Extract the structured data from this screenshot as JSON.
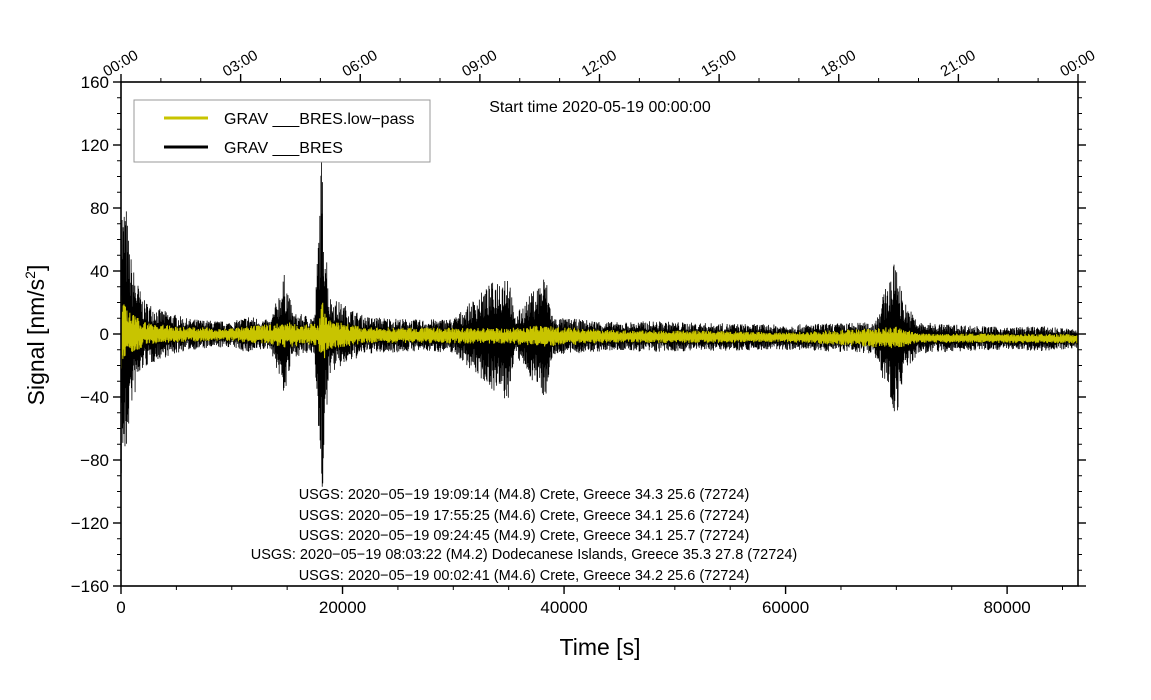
{
  "chart_data": {
    "type": "line",
    "title": "",
    "start_time_label": "Start time 2020-05-19 00:00:00",
    "xlabel": "Time [s]",
    "ylabel_main": "Signal [nm/s",
    "ylabel_sup": "2",
    "ylabel_close": "]",
    "xlim": [
      0,
      86400
    ],
    "ylim": [
      -160,
      160
    ],
    "x_ticks": [
      0,
      20000,
      40000,
      60000,
      80000
    ],
    "x_tick_labels": [
      "0",
      "20000",
      "40000",
      "60000",
      "80000"
    ],
    "y_ticks": [
      -160,
      -120,
      -80,
      -40,
      0,
      40,
      80,
      120,
      160
    ],
    "y_tick_labels": [
      "−160",
      "−120",
      "−80",
      "−40",
      "0",
      "40",
      "80",
      "120",
      "160"
    ],
    "top_ticks": [
      0,
      10800,
      21600,
      32400,
      43200,
      54000,
      64800,
      75600,
      86400
    ],
    "top_tick_labels": [
      "00:00",
      "03:00",
      "06:00",
      "09:00",
      "12:00",
      "15:00",
      "18:00",
      "21:00",
      "00:00"
    ],
    "grid": false,
    "legend_position": "top-left",
    "series": [
      {
        "name": "GRAV ___BRES.low−pass",
        "color": "#c8c400",
        "envelope": [
          [
            0,
            25
          ],
          [
            300,
            20
          ],
          [
            800,
            14
          ],
          [
            2000,
            8
          ],
          [
            5000,
            5
          ],
          [
            10000,
            4
          ],
          [
            14800,
            8
          ],
          [
            17800,
            7
          ],
          [
            18200,
            22
          ],
          [
            18600,
            10
          ],
          [
            22000,
            5
          ],
          [
            30000,
            5
          ],
          [
            35000,
            5
          ],
          [
            38000,
            7
          ],
          [
            44000,
            4
          ],
          [
            52000,
            4
          ],
          [
            60000,
            3
          ],
          [
            70000,
            7
          ],
          [
            72000,
            3
          ],
          [
            80000,
            3
          ],
          [
            86400,
            3
          ]
        ]
      },
      {
        "name": "GRAV ___BRES",
        "color": "#000000",
        "envelope": [
          [
            0,
            95
          ],
          [
            200,
            80
          ],
          [
            400,
            90
          ],
          [
            700,
            60
          ],
          [
            1000,
            45
          ],
          [
            2000,
            22
          ],
          [
            3500,
            16
          ],
          [
            6000,
            10
          ],
          [
            10000,
            8
          ],
          [
            11500,
            12
          ],
          [
            13500,
            9
          ],
          [
            14800,
            40
          ],
          [
            15500,
            14
          ],
          [
            17500,
            12
          ],
          [
            18100,
            115
          ],
          [
            18400,
            75
          ],
          [
            18800,
            25
          ],
          [
            20000,
            20
          ],
          [
            22000,
            12
          ],
          [
            27000,
            10
          ],
          [
            30000,
            11
          ],
          [
            35000,
            44
          ],
          [
            35500,
            12
          ],
          [
            38300,
            40
          ],
          [
            39000,
            12
          ],
          [
            45000,
            9
          ],
          [
            48000,
            10
          ],
          [
            52000,
            9
          ],
          [
            60000,
            8
          ],
          [
            68000,
            10
          ],
          [
            70000,
            52
          ],
          [
            70600,
            25
          ],
          [
            72000,
            10
          ],
          [
            80000,
            7
          ],
          [
            83000,
            8
          ],
          [
            86400,
            6
          ]
        ]
      }
    ],
    "annotations": [
      "USGS: 2020−05−19 19:09:14 (M4.8) Crete, Greece 34.3 25.6 (72724)",
      "USGS: 2020−05−19 17:55:25 (M4.6) Crete, Greece 34.1 25.6 (72724)",
      "USGS: 2020−05−19 09:24:45 (M4.9) Crete, Greece 34.1 25.7 (72724)",
      "USGS: 2020−05−19 08:03:22 (M4.2) Dodecanese Islands, Greece 35.3 27.8 (72724)",
      "USGS: 2020−05−19 00:02:41 (M4.6) Crete, Greece 34.2 25.6 (72724)"
    ]
  }
}
